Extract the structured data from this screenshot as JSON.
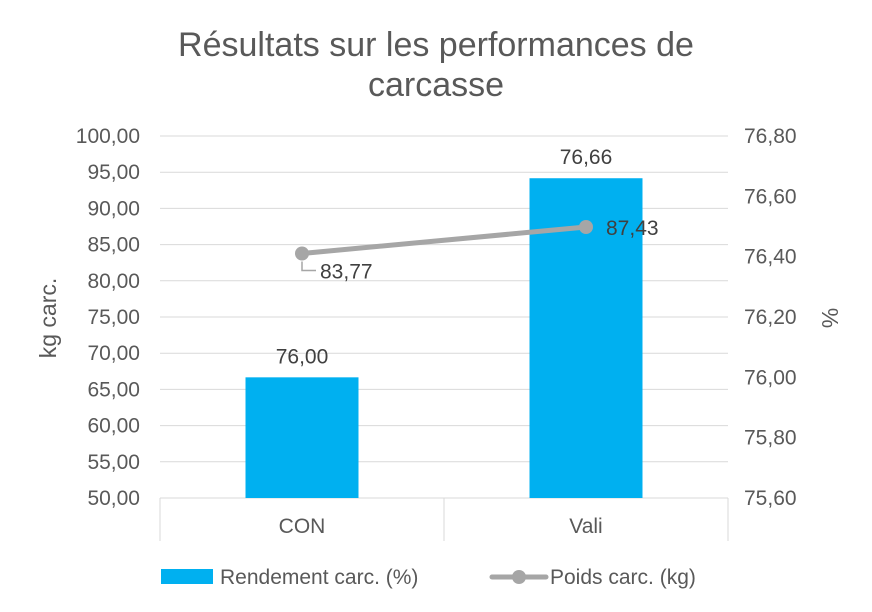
{
  "chart_data": {
    "type": "bar",
    "title": "Résultats sur les performances de carcasse",
    "title_lines": [
      "Résultats sur les performances de",
      "carcasse"
    ],
    "categories": [
      "CON",
      "Vali"
    ],
    "y_left": {
      "label": "kg  carc.",
      "lim": [
        50,
        100
      ],
      "ticks": [
        "50,00",
        "55,00",
        "60,00",
        "65,00",
        "70,00",
        "75,00",
        "80,00",
        "85,00",
        "90,00",
        "95,00",
        "100,00"
      ]
    },
    "y_right": {
      "label": "%",
      "lim": [
        75.6,
        76.8
      ],
      "ticks": [
        "75,60",
        "75,80",
        "76,00",
        "76,20",
        "76,40",
        "76,60",
        "76,80"
      ]
    },
    "series": [
      {
        "name": "Rendement carc. (%)",
        "type": "bar",
        "axis": "right",
        "values": [
          76.0,
          76.66
        ],
        "labels": [
          "76,00",
          "76,66"
        ],
        "color": "#00B0F0"
      },
      {
        "name": "Poids carc. (kg)",
        "type": "line",
        "axis": "left",
        "values": [
          83.77,
          87.43
        ],
        "labels": [
          "83,77",
          "87,43"
        ],
        "color": "#A6A6A6"
      }
    ],
    "gridlines": true,
    "legend_position": "bottom"
  }
}
